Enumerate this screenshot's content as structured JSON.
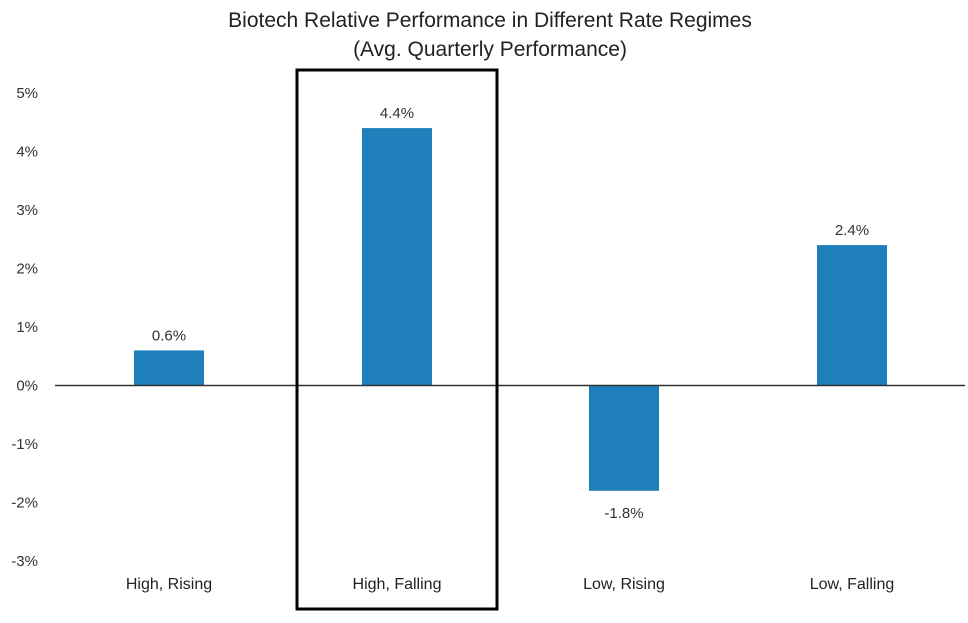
{
  "chart_data": {
    "type": "bar",
    "title": "Biotech Relative Performance in Different Rate Regimes",
    "subtitle": "(Avg. Quarterly Performance)",
    "categories": [
      "High, Rising",
      "High, Falling",
      "Low, Rising",
      "Low, Falling"
    ],
    "values": [
      0.6,
      4.4,
      -1.8,
      2.4
    ],
    "value_labels": [
      "0.6%",
      "4.4%",
      "-1.8%",
      "2.4%"
    ],
    "y_ticks": [
      "5%",
      "4%",
      "3%",
      "2%",
      "1%",
      "0%",
      "-1%",
      "-2%",
      "-3%"
    ],
    "y_tick_values": [
      5,
      4,
      3,
      2,
      1,
      0,
      -1,
      -2,
      -3
    ],
    "ylim": [
      -3,
      5
    ],
    "xlabel": "",
    "ylabel": "",
    "grid": false,
    "highlighted_category": "High, Falling",
    "bar_color": "#1f7fba",
    "highlight_box_color": "#000000",
    "axis_color": "#333333"
  }
}
